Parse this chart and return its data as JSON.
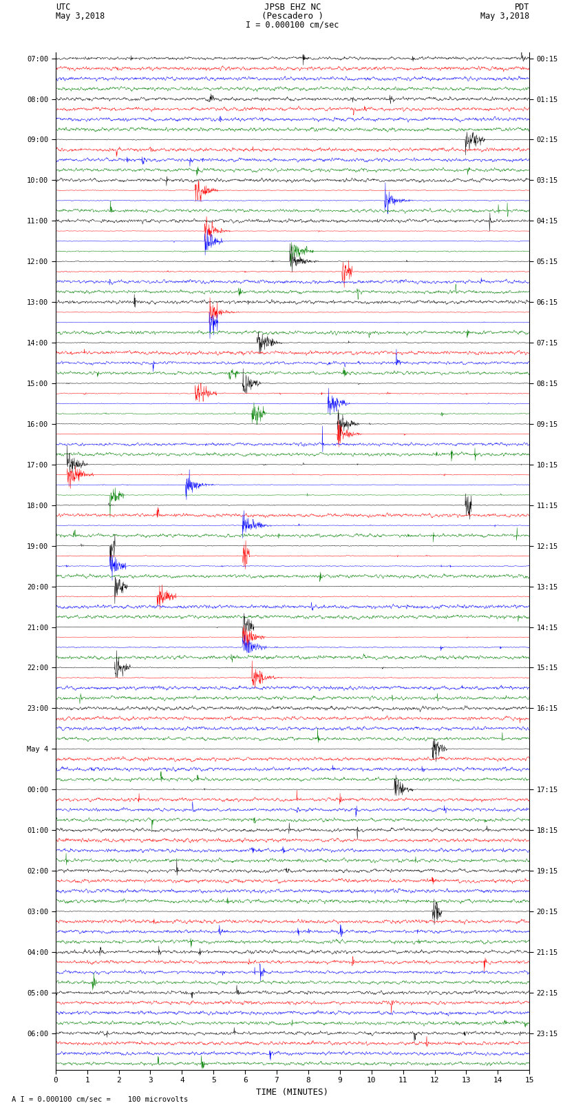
{
  "title_line1": "JPSB EHZ NC",
  "title_line2": "(Pescadero )",
  "title_line3": "I = 0.000100 cm/sec",
  "left_header1": "UTC",
  "left_header2": "May 3,2018",
  "right_header1": "PDT",
  "right_header2": "May 3,2018",
  "xlabel": "TIME (MINUTES)",
  "footer": "A I = 0.000100 cm/sec =    100 microvolts",
  "utc_hour_labels": [
    "07:00",
    "08:00",
    "09:00",
    "10:00",
    "11:00",
    "12:00",
    "13:00",
    "14:00",
    "15:00",
    "16:00",
    "17:00",
    "18:00",
    "19:00",
    "20:00",
    "21:00",
    "22:00",
    "23:00",
    "May 4",
    "00:00",
    "01:00",
    "02:00",
    "03:00",
    "04:00",
    "05:00",
    "06:00"
  ],
  "pdt_hour_labels": [
    "00:15",
    "01:15",
    "02:15",
    "03:15",
    "04:15",
    "05:15",
    "06:15",
    "07:15",
    "08:15",
    "09:15",
    "10:15",
    "11:15",
    "12:15",
    "13:15",
    "14:15",
    "15:15",
    "16:15",
    "17:15",
    "18:15",
    "19:15",
    "20:15",
    "21:15",
    "22:15",
    "23:15"
  ],
  "trace_colors": [
    "black",
    "red",
    "blue",
    "green"
  ],
  "bg_color": "#ffffff",
  "n_hours": 25,
  "traces_per_hour": 4,
  "n_points": 1800,
  "seed": 42
}
